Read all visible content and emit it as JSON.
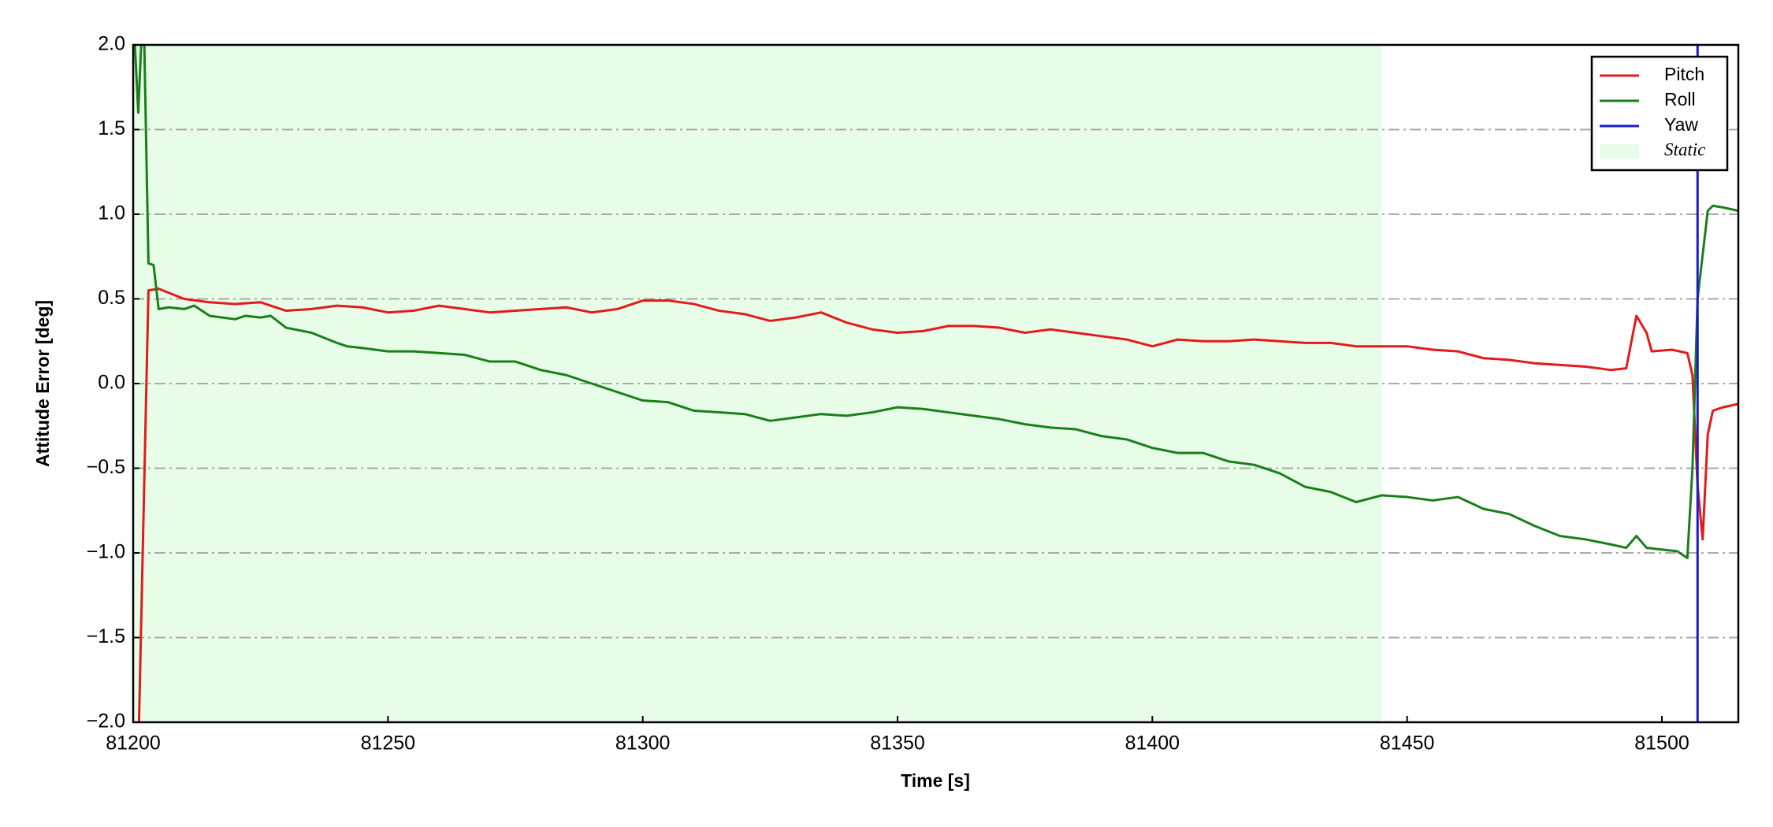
{
  "chart_data": {
    "type": "line",
    "xlabel": "Time [s]",
    "ylabel": "Attitude Error [deg]",
    "xlim": [
      81200,
      81515
    ],
    "ylim": [
      -2,
      2
    ],
    "xticks": [
      81200,
      81250,
      81300,
      81350,
      81400,
      81450,
      81500
    ],
    "yticks": [
      {
        "value": -2,
        "label": "−2.0"
      },
      {
        "value": -1.5,
        "label": "−1.5"
      },
      {
        "value": -1,
        "label": "−1.0"
      },
      {
        "value": -0.5,
        "label": "−0.5"
      },
      {
        "value": 0,
        "label": "0.0"
      },
      {
        "value": 0.5,
        "label": "0.5"
      },
      {
        "value": 1,
        "label": "1.0"
      },
      {
        "value": 1.5,
        "label": "1.5"
      },
      {
        "value": 2,
        "label": "2.0"
      }
    ],
    "grid": true,
    "legend": "upper right",
    "shaded_regions": [
      {
        "name": "Static",
        "xlim": [
          81200,
          81445
        ],
        "color": "#e8fde8"
      }
    ],
    "series": [
      {
        "name": "Pitch",
        "color": "#e31a1c",
        "x": [
          81201,
          81203,
          81205,
          81210,
          81215,
          81220,
          81225,
          81230,
          81235,
          81240,
          81245,
          81250,
          81255,
          81260,
          81265,
          81270,
          81275,
          81280,
          81285,
          81290,
          81295,
          81300,
          81305,
          81310,
          81315,
          81320,
          81325,
          81330,
          81335,
          81340,
          81345,
          81350,
          81355,
          81360,
          81365,
          81370,
          81375,
          81380,
          81385,
          81390,
          81395,
          81400,
          81405,
          81410,
          81415,
          81420,
          81425,
          81430,
          81435,
          81440,
          81445,
          81450,
          81455,
          81460,
          81465,
          81470,
          81475,
          81480,
          81485,
          81490,
          81493,
          81495,
          81497,
          81498,
          81502,
          81505,
          81506,
          81507,
          81508,
          81509,
          81510,
          81512,
          81515
        ],
        "values": [
          -2.2,
          0.55,
          0.56,
          0.5,
          0.48,
          0.47,
          0.48,
          0.43,
          0.44,
          0.46,
          0.45,
          0.42,
          0.43,
          0.46,
          0.44,
          0.42,
          0.43,
          0.44,
          0.45,
          0.42,
          0.44,
          0.49,
          0.49,
          0.47,
          0.43,
          0.41,
          0.37,
          0.39,
          0.42,
          0.36,
          0.32,
          0.3,
          0.31,
          0.34,
          0.34,
          0.33,
          0.3,
          0.32,
          0.3,
          0.28,
          0.26,
          0.22,
          0.26,
          0.25,
          0.25,
          0.26,
          0.25,
          0.24,
          0.24,
          0.22,
          0.22,
          0.22,
          0.2,
          0.19,
          0.15,
          0.14,
          0.12,
          0.11,
          0.1,
          0.08,
          0.09,
          0.4,
          0.3,
          0.19,
          0.2,
          0.18,
          0.05,
          -0.6,
          -0.92,
          -0.3,
          -0.16,
          -0.14,
          -0.12
        ]
      },
      {
        "name": "Roll",
        "color": "#1a7f1a",
        "x": [
          81200,
          81201,
          81202,
          81203,
          81204,
          81205,
          81207,
          81210,
          81212,
          81215,
          81220,
          81222,
          81225,
          81227,
          81230,
          81235,
          81240,
          81242,
          81245,
          81250,
          81255,
          81260,
          81265,
          81270,
          81275,
          81280,
          81285,
          81290,
          81295,
          81300,
          81305,
          81310,
          81315,
          81320,
          81325,
          81330,
          81335,
          81340,
          81345,
          81350,
          81355,
          81360,
          81365,
          81370,
          81375,
          81380,
          81385,
          81390,
          81395,
          81400,
          81405,
          81410,
          81415,
          81420,
          81425,
          81430,
          81435,
          81440,
          81445,
          81450,
          81455,
          81460,
          81465,
          81470,
          81475,
          81480,
          81485,
          81490,
          81493,
          81495,
          81497,
          81500,
          81503,
          81505,
          81506,
          81507,
          81509,
          81510,
          81512,
          81515
        ],
        "values": [
          2.2,
          1.6,
          2.3,
          0.71,
          0.7,
          0.44,
          0.45,
          0.44,
          0.46,
          0.4,
          0.38,
          0.4,
          0.39,
          0.4,
          0.33,
          0.3,
          0.24,
          0.22,
          0.21,
          0.19,
          0.19,
          0.18,
          0.17,
          0.13,
          0.13,
          0.08,
          0.05,
          0.0,
          -0.05,
          -0.1,
          -0.11,
          -0.16,
          -0.17,
          -0.18,
          -0.22,
          -0.2,
          -0.18,
          -0.19,
          -0.17,
          -0.14,
          -0.15,
          -0.17,
          -0.19,
          -0.21,
          -0.24,
          -0.26,
          -0.27,
          -0.31,
          -0.33,
          -0.38,
          -0.41,
          -0.41,
          -0.46,
          -0.48,
          -0.53,
          -0.61,
          -0.64,
          -0.7,
          -0.66,
          -0.67,
          -0.69,
          -0.67,
          -0.74,
          -0.77,
          -0.84,
          -0.9,
          -0.92,
          -0.95,
          -0.97,
          -0.9,
          -0.97,
          -0.98,
          -0.99,
          -1.03,
          -0.5,
          0.5,
          1.02,
          1.05,
          1.04,
          1.02
        ]
      },
      {
        "name": "Yaw",
        "color": "#1a1acc",
        "x": [
          81507,
          81507
        ],
        "values": [
          -2,
          2
        ]
      }
    ]
  }
}
